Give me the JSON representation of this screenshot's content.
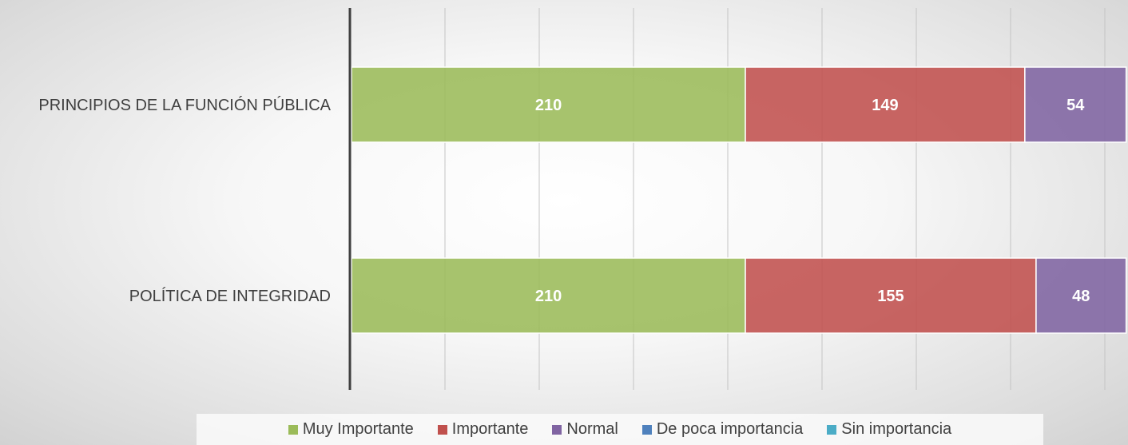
{
  "chart_data": {
    "type": "bar",
    "orientation": "horizontal",
    "stacked": true,
    "categories": [
      "PRINCIPIOS DE LA FUNCIÓN PÚBLICA",
      "POLÍTICA DE INTEGRIDAD"
    ],
    "series": [
      {
        "name": "Muy Importante",
        "color": "#9bbb59",
        "values": [
          210,
          210
        ]
      },
      {
        "name": "Importante",
        "color": "#c0504d",
        "values": [
          149,
          155
        ]
      },
      {
        "name": "Normal",
        "color": "#8064a2",
        "values": [
          54,
          48
        ]
      },
      {
        "name": "De poca importancia",
        "color": "#4f81bd",
        "values": [
          null,
          null
        ]
      },
      {
        "name": "Sin importancia",
        "color": "#4bacc6",
        "values": [
          null,
          null
        ]
      }
    ],
    "xlim": [
      0,
      414
    ],
    "grid": true,
    "legend_position": "bottom"
  }
}
